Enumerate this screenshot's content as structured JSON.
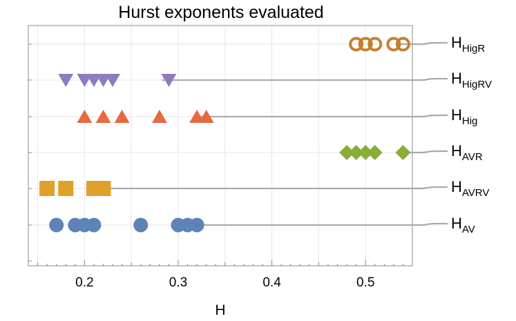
{
  "chart_data": {
    "type": "scatter",
    "title": "Hurst exponents evaluated",
    "xlabel": "H",
    "ylabel": "",
    "xlim": [
      0.14,
      0.55
    ],
    "xticks": [
      0.2,
      0.3,
      0.4,
      0.5
    ],
    "xtick_labels": [
      "0.2",
      "0.3",
      "0.4",
      "0.5"
    ],
    "grid": true,
    "labels_placement": "right of plot, with connector lines",
    "series": [
      {
        "name": "H",
        "subscript": "HigR",
        "marker": "open-circle",
        "color": "#c87d2e",
        "x": [
          0.49,
          0.5,
          0.51,
          0.53,
          0.54
        ]
      },
      {
        "name": "H",
        "subscript": "HigRV",
        "marker": "triangle-down",
        "color": "#8f7bbf",
        "x": [
          0.18,
          0.2,
          0.21,
          0.22,
          0.23,
          0.29
        ]
      },
      {
        "name": "H",
        "subscript": "Hig",
        "marker": "triangle-up",
        "color": "#e8683f",
        "x": [
          0.2,
          0.22,
          0.24,
          0.28,
          0.32,
          0.33
        ]
      },
      {
        "name": "H",
        "subscript": "AVR",
        "marker": "diamond",
        "color": "#8aad37",
        "x": [
          0.48,
          0.49,
          0.5,
          0.51,
          0.54
        ]
      },
      {
        "name": "H",
        "subscript": "AVRV",
        "marker": "square",
        "color": "#e0a02a",
        "x": [
          0.16,
          0.18,
          0.21,
          0.22
        ]
      },
      {
        "name": "H",
        "subscript": "AV",
        "marker": "circle",
        "color": "#5f83b8",
        "x": [
          0.17,
          0.19,
          0.2,
          0.21,
          0.26,
          0.3,
          0.31,
          0.32
        ]
      }
    ],
    "connector_color": "#aaaaaa"
  }
}
